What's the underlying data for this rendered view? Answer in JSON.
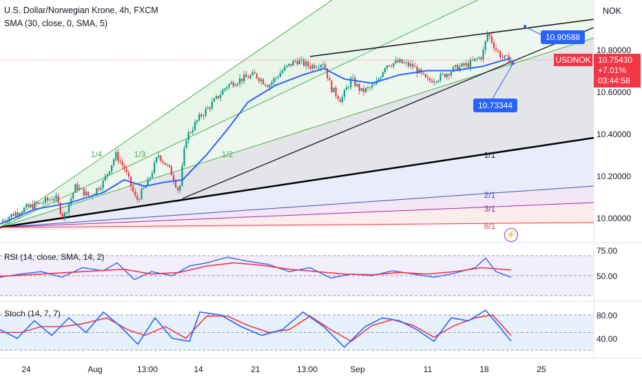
{
  "header": {
    "title": "U.S. Dollar/Norwegian Krone, 4h, FXCM",
    "sma_label": "SMA (30, close, 0, SMA, 5)",
    "currency": "NOK"
  },
  "price_axis": {
    "ticks": [
      "10.80000",
      "10.60000",
      "10.40000",
      "10.20000",
      "10.00000"
    ]
  },
  "price_tags": {
    "upper_tag": "10.90588",
    "lower_tag": "10.73344",
    "symbol": "USDNOK",
    "last_price": "10.75430",
    "change": "+7.01%",
    "countdown": "03:44:58"
  },
  "gann_fan": {
    "labels": [
      "1/4",
      "1/3",
      "1/2",
      "1/1",
      "2/1",
      "3/1",
      "8/1"
    ]
  },
  "rsi": {
    "label": "RSI (14, close, SMA, 14, 2)",
    "ticks": [
      "75.00",
      "50.00"
    ]
  },
  "stoch": {
    "label": "Stoch (14, 7, 7)",
    "ticks": [
      "80.00",
      "40.00"
    ]
  },
  "time_axis": {
    "labels": [
      "24",
      "Aug",
      "13:00",
      "14",
      "21",
      "13:00",
      "Sep",
      "11",
      "18",
      "25"
    ]
  },
  "colors": {
    "up": "#089981",
    "down": "#f23645",
    "sma": "#2962ff",
    "rsi_line": "#2962ff",
    "rsi_ma": "#f23645",
    "stoch_k": "#2962ff",
    "stoch_d": "#f23645"
  },
  "chart_data": [
    {
      "type": "candlestick",
      "title": "U.S. Dollar/Norwegian Krone, 4h, FXCM",
      "ylim": [
        9.93,
        11.08
      ],
      "x_labels": [
        "24",
        "Aug",
        "13:00",
        "14",
        "21",
        "13:00",
        "Sep",
        "11",
        "18",
        "25"
      ],
      "series": [
        {
          "name": "Close",
          "points": [
            [
              0,
              9.98
            ],
            [
              20,
              10.02
            ],
            [
              40,
              10.05
            ],
            [
              60,
              10.07
            ],
            [
              80,
              10.1
            ],
            [
              92,
              10.0
            ],
            [
              110,
              10.15
            ],
            [
              130,
              10.1
            ],
            [
              150,
              10.17
            ],
            [
              168,
              10.3
            ],
            [
              180,
              10.24
            ],
            [
              198,
              10.08
            ],
            [
              215,
              10.17
            ],
            [
              230,
              10.3
            ],
            [
              248,
              10.22
            ],
            [
              260,
              10.12
            ],
            [
              270,
              10.38
            ],
            [
              290,
              10.48
            ],
            [
              310,
              10.55
            ],
            [
              330,
              10.63
            ],
            [
              350,
              10.66
            ],
            [
              370,
              10.68
            ],
            [
              390,
              10.63
            ],
            [
              410,
              10.7
            ],
            [
              430,
              10.75
            ],
            [
              450,
              10.72
            ],
            [
              470,
              10.74
            ],
            [
              480,
              10.62
            ],
            [
              495,
              10.56
            ],
            [
              510,
              10.66
            ],
            [
              525,
              10.6
            ],
            [
              545,
              10.63
            ],
            [
              560,
              10.73
            ],
            [
              580,
              10.74
            ],
            [
              600,
              10.72
            ],
            [
              620,
              10.65
            ],
            [
              640,
              10.67
            ],
            [
              660,
              10.71
            ],
            [
              680,
              10.73
            ],
            [
              700,
              10.77
            ],
            [
              708,
              10.88
            ],
            [
              720,
              10.8
            ],
            [
              730,
              10.76
            ],
            [
              742,
              10.75
            ]
          ]
        },
        {
          "name": "SMA",
          "points": [
            [
              0,
              9.97
            ],
            [
              50,
              10.04
            ],
            [
              100,
              10.07
            ],
            [
              150,
              10.12
            ],
            [
              180,
              10.18
            ],
            [
              210,
              10.15
            ],
            [
              240,
              10.17
            ],
            [
              265,
              10.18
            ],
            [
              300,
              10.3
            ],
            [
              330,
              10.42
            ],
            [
              360,
              10.55
            ],
            [
              400,
              10.63
            ],
            [
              440,
              10.68
            ],
            [
              470,
              10.71
            ],
            [
              500,
              10.66
            ],
            [
              540,
              10.64
            ],
            [
              580,
              10.68
            ],
            [
              620,
              10.7
            ],
            [
              660,
              10.7
            ],
            [
              700,
              10.72
            ],
            [
              742,
              10.76
            ]
          ]
        }
      ]
    },
    {
      "type": "line",
      "title": "RSI (14, close, SMA, 14, 2)",
      "ylim": [
        30,
        80
      ],
      "ticks": [
        75,
        50
      ],
      "series": [
        {
          "name": "RSI",
          "points": [
            [
              0,
              48
            ],
            [
              30,
              52
            ],
            [
              60,
              55
            ],
            [
              90,
              48
            ],
            [
              120,
              60
            ],
            [
              150,
              56
            ],
            [
              170,
              66
            ],
            [
              195,
              45
            ],
            [
              220,
              55
            ],
            [
              250,
              50
            ],
            [
              275,
              62
            ],
            [
              300,
              66
            ],
            [
              330,
              73
            ],
            [
              360,
              68
            ],
            [
              390,
              64
            ],
            [
              420,
              55
            ],
            [
              450,
              60
            ],
            [
              480,
              47
            ],
            [
              510,
              52
            ],
            [
              540,
              50
            ],
            [
              570,
              56
            ],
            [
              600,
              52
            ],
            [
              630,
              48
            ],
            [
              660,
              53
            ],
            [
              690,
              60
            ],
            [
              705,
              72
            ],
            [
              720,
              55
            ],
            [
              742,
              48
            ]
          ]
        },
        {
          "name": "RSI SMA",
          "points": [
            [
              0,
              49
            ],
            [
              60,
              52
            ],
            [
              120,
              55
            ],
            [
              180,
              58
            ],
            [
              220,
              52
            ],
            [
              260,
              54
            ],
            [
              300,
              62
            ],
            [
              340,
              66
            ],
            [
              380,
              63
            ],
            [
              420,
              58
            ],
            [
              460,
              55
            ],
            [
              500,
              52
            ],
            [
              540,
              51
            ],
            [
              580,
              54
            ],
            [
              620,
              52
            ],
            [
              660,
              55
            ],
            [
              700,
              60
            ],
            [
              742,
              57
            ]
          ]
        }
      ]
    },
    {
      "type": "line",
      "title": "Stoch (14, 7, 7)",
      "ylim": [
        20,
        90
      ],
      "ticks": [
        80,
        40
      ],
      "series": [
        {
          "name": "%K",
          "points": [
            [
              0,
              55
            ],
            [
              25,
              40
            ],
            [
              50,
              70
            ],
            [
              75,
              45
            ],
            [
              100,
              75
            ],
            [
              125,
              50
            ],
            [
              150,
              85
            ],
            [
              175,
              60
            ],
            [
              200,
              30
            ],
            [
              225,
              75
            ],
            [
              250,
              40
            ],
            [
              275,
              35
            ],
            [
              290,
              85
            ],
            [
              320,
              80
            ],
            [
              350,
              60
            ],
            [
              380,
              45
            ],
            [
              410,
              55
            ],
            [
              440,
              85
            ],
            [
              470,
              60
            ],
            [
              500,
              25
            ],
            [
              530,
              60
            ],
            [
              555,
              75
            ],
            [
              580,
              70
            ],
            [
              605,
              55
            ],
            [
              630,
              35
            ],
            [
              655,
              75
            ],
            [
              680,
              70
            ],
            [
              705,
              88
            ],
            [
              725,
              60
            ],
            [
              742,
              35
            ]
          ]
        },
        {
          "name": "%D",
          "points": [
            [
              0,
              50
            ],
            [
              30,
              50
            ],
            [
              60,
              60
            ],
            [
              90,
              60
            ],
            [
              120,
              65
            ],
            [
              155,
              75
            ],
            [
              185,
              55
            ],
            [
              210,
              45
            ],
            [
              240,
              60
            ],
            [
              270,
              40
            ],
            [
              300,
              78
            ],
            [
              330,
              78
            ],
            [
              360,
              62
            ],
            [
              390,
              50
            ],
            [
              420,
              55
            ],
            [
              450,
              78
            ],
            [
              480,
              55
            ],
            [
              510,
              35
            ],
            [
              540,
              62
            ],
            [
              570,
              72
            ],
            [
              600,
              62
            ],
            [
              630,
              42
            ],
            [
              660,
              62
            ],
            [
              690,
              75
            ],
            [
              715,
              80
            ],
            [
              742,
              45
            ]
          ]
        }
      ]
    }
  ]
}
